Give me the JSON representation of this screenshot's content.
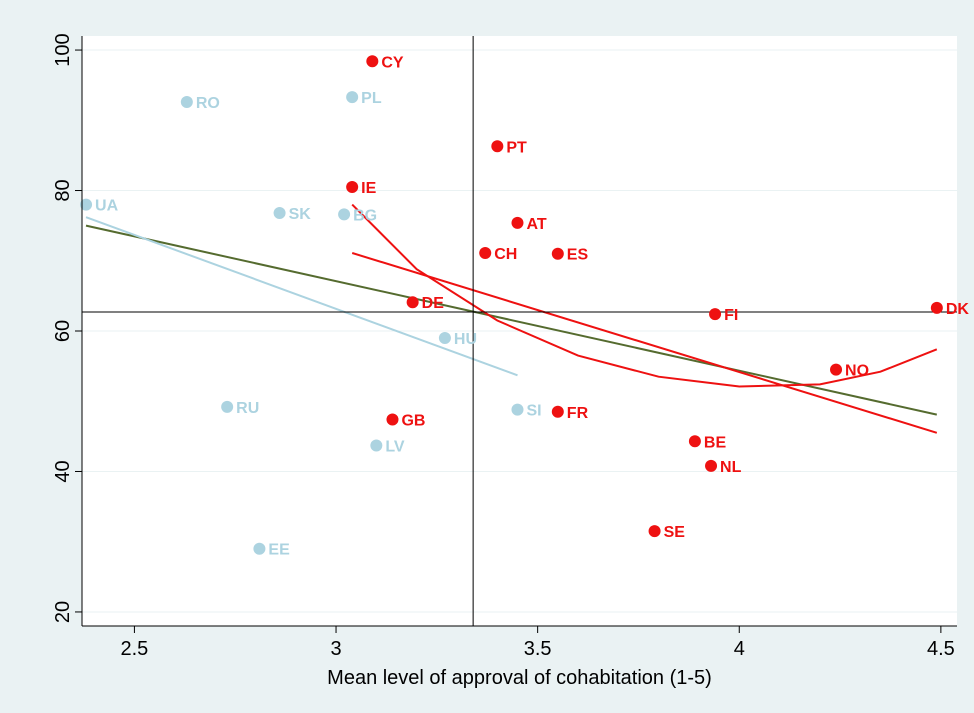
{
  "chart_data": {
    "type": "scatter",
    "xlabel": "Mean level of approval of cohabitation (1-5)",
    "ylabel": "",
    "xlim": [
      2.37,
      4.54
    ],
    "ylim": [
      18,
      102
    ],
    "xticks": [
      2.5,
      3,
      3.5,
      4,
      4.5
    ],
    "xtick_labels": [
      "2.5",
      "3",
      "3.5",
      "4",
      "4.5"
    ],
    "yticks": [
      20,
      40,
      60,
      80,
      100
    ],
    "ytick_labels": [
      "20",
      "40",
      "60",
      "80",
      "100"
    ],
    "grid": true,
    "reference_lines": {
      "x": 3.34,
      "y": 62.7
    },
    "colors": {
      "group_a": "#ee1111",
      "group_b": "#acd3e0",
      "fit_all": "#556b2f",
      "fit_b": "#acd3e0",
      "fit_a": "#ee1111",
      "ref": "#000000",
      "grid": "#eaf2f3"
    },
    "series": [
      {
        "group": "a",
        "color": "#ee1111",
        "points": [
          {
            "label": "CY",
            "x": 3.09,
            "y": 98.4
          },
          {
            "label": "PT",
            "x": 3.4,
            "y": 86.3
          },
          {
            "label": "IE",
            "x": 3.04,
            "y": 80.5
          },
          {
            "label": "AT",
            "x": 3.45,
            "y": 75.4
          },
          {
            "label": "CH",
            "x": 3.37,
            "y": 71.1
          },
          {
            "label": "ES",
            "x": 3.55,
            "y": 71.0
          },
          {
            "label": "DE",
            "x": 3.19,
            "y": 64.1
          },
          {
            "label": "DK",
            "x": 4.49,
            "y": 63.3
          },
          {
            "label": "FI",
            "x": 3.94,
            "y": 62.4
          },
          {
            "label": "NO",
            "x": 4.24,
            "y": 54.5
          },
          {
            "label": "GB",
            "x": 3.14,
            "y": 47.4
          },
          {
            "label": "FR",
            "x": 3.55,
            "y": 48.5
          },
          {
            "label": "BE",
            "x": 3.89,
            "y": 44.3
          },
          {
            "label": "NL",
            "x": 3.93,
            "y": 40.8
          },
          {
            "label": "SE",
            "x": 3.79,
            "y": 31.5
          }
        ]
      },
      {
        "group": "b",
        "color": "#acd3e0",
        "points": [
          {
            "label": "RO",
            "x": 2.63,
            "y": 92.6
          },
          {
            "label": "PL",
            "x": 3.04,
            "y": 93.3
          },
          {
            "label": "UA",
            "x": 2.38,
            "y": 78.0
          },
          {
            "label": "SK",
            "x": 2.86,
            "y": 76.8
          },
          {
            "label": "BG",
            "x": 3.02,
            "y": 76.6
          },
          {
            "label": "HU",
            "x": 3.27,
            "y": 59.0
          },
          {
            "label": "RU",
            "x": 2.73,
            "y": 49.2
          },
          {
            "label": "SI",
            "x": 3.45,
            "y": 48.8
          },
          {
            "label": "LV",
            "x": 3.1,
            "y": 43.7
          },
          {
            "label": "EE",
            "x": 2.81,
            "y": 29.0
          }
        ]
      }
    ],
    "fit_lines": [
      {
        "name": "",
        "color": "#556b2f",
        "kind": "linear",
        "points": [
          [
            2.38,
            75.0
          ],
          [
            4.49,
            48.1
          ]
        ]
      },
      {
        "name": "",
        "color": "#acd3e0",
        "kind": "linear",
        "points": [
          [
            2.38,
            76.2
          ],
          [
            3.45,
            53.7
          ]
        ]
      },
      {
        "name": "",
        "color": "#ee1111",
        "kind": "linear",
        "points": [
          [
            3.04,
            71.1
          ],
          [
            4.49,
            45.5
          ]
        ]
      },
      {
        "name": "",
        "color": "#ee1111",
        "kind": "quadratic",
        "points": [
          [
            3.04,
            78.0
          ],
          [
            3.2,
            68.8
          ],
          [
            3.4,
            61.5
          ],
          [
            3.6,
            56.5
          ],
          [
            3.8,
            53.5
          ],
          [
            4.0,
            52.1
          ],
          [
            4.2,
            52.4
          ],
          [
            4.35,
            54.2
          ],
          [
            4.49,
            57.4
          ]
        ]
      }
    ]
  }
}
